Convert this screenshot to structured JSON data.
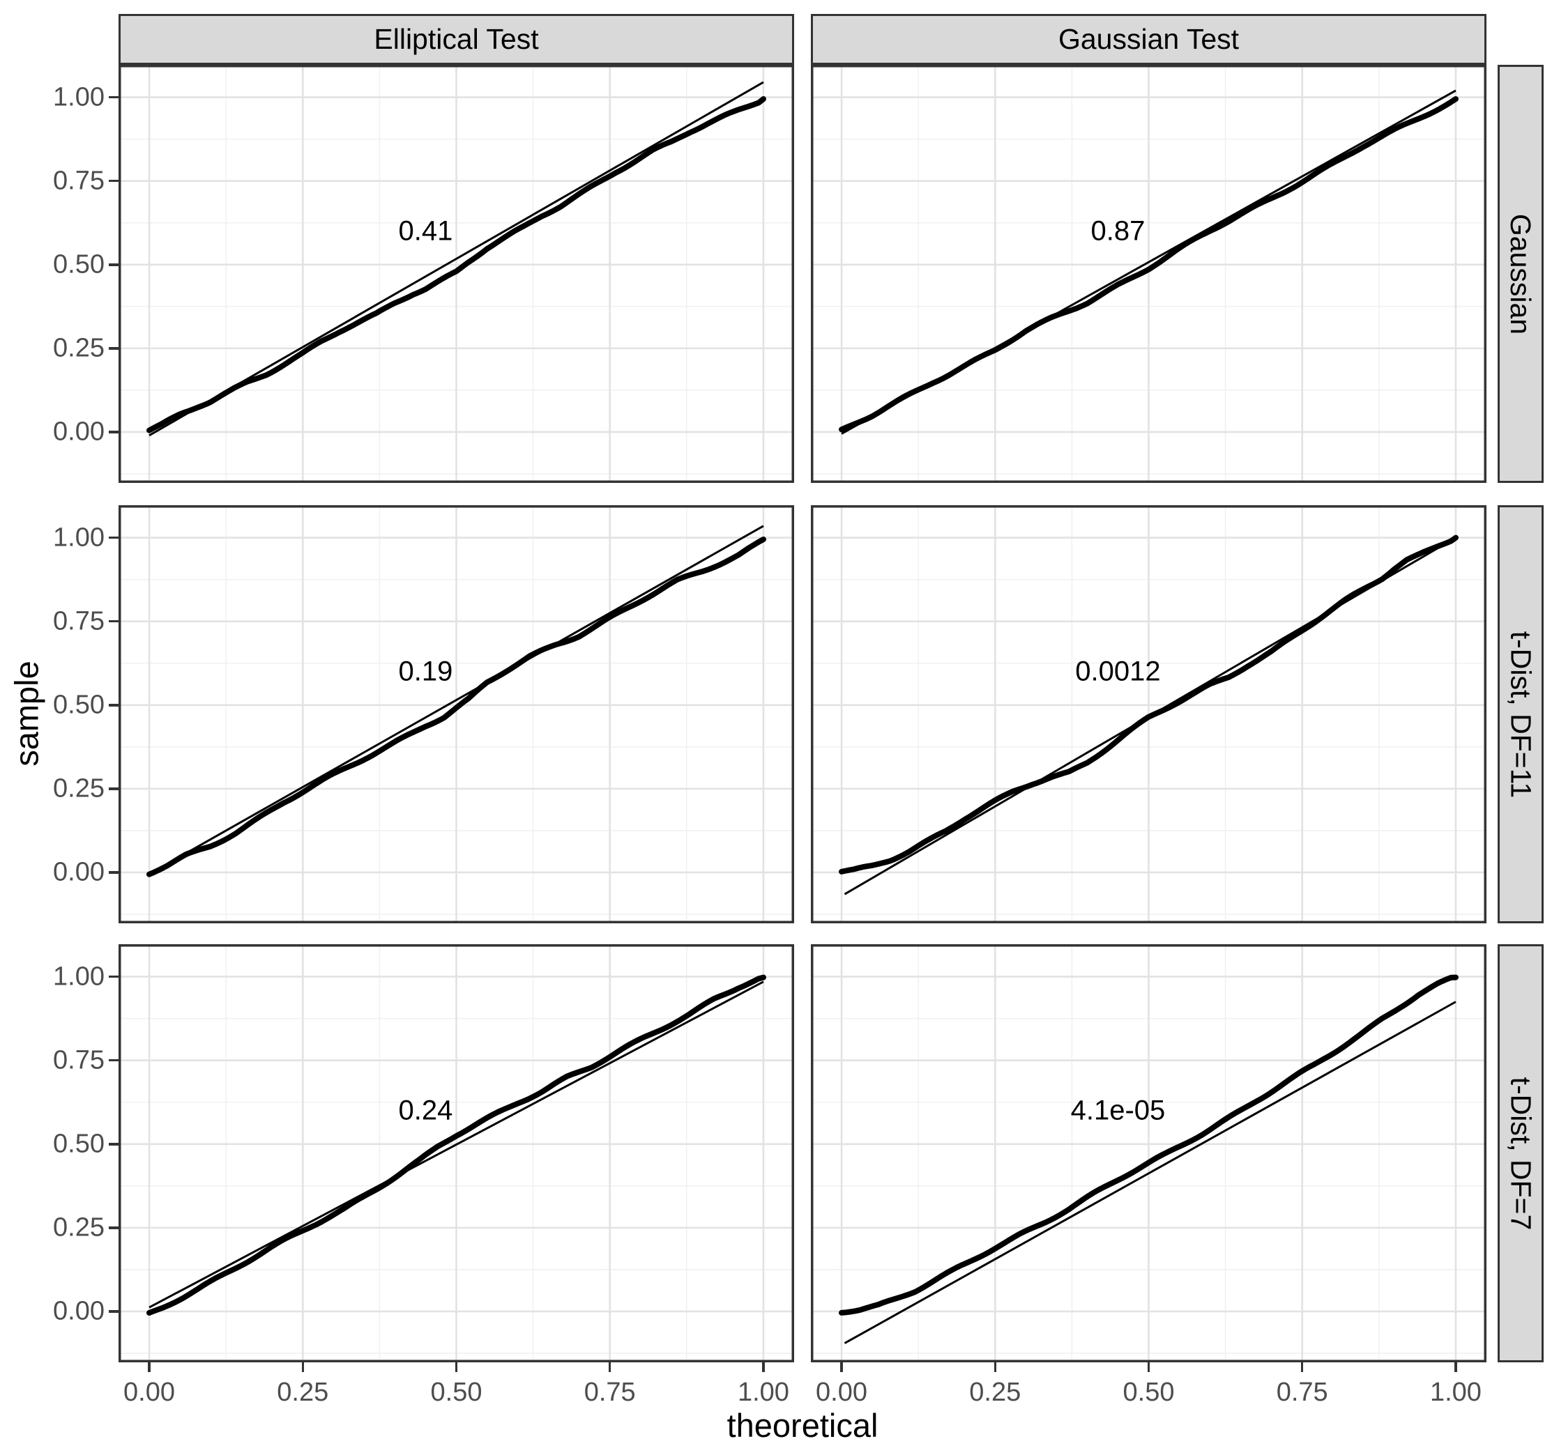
{
  "figure": {
    "background": "#ffffff"
  },
  "axes": {
    "x_title": "theoretical",
    "y_title": "sample",
    "x_tick_labels": [
      "0.00",
      "0.25",
      "0.50",
      "0.75",
      "1.00"
    ],
    "y_tick_labels": [
      "0.00",
      "0.25",
      "0.50",
      "0.75",
      "1.00"
    ],
    "x_tick_values": [
      0,
      0.25,
      0.5,
      0.75,
      1
    ],
    "y_tick_values": [
      0,
      0.25,
      0.5,
      0.75,
      1
    ],
    "xlim": [
      -0.05,
      1.05
    ],
    "ylim": [
      -0.152,
      1.097
    ],
    "grid": "on"
  },
  "facets": {
    "col_labels": [
      "Elliptical Test",
      "Gaussian Test"
    ],
    "row_labels": [
      "Gaussian",
      "t-Dist, DF=11",
      "t-Dist, DF=7"
    ]
  },
  "colors": {
    "strip_fill": "#d9d9d9",
    "strip_border": "#333333",
    "panel_border": "#333333",
    "grid_major": "#e2e2e2",
    "grid_minor": "#f1f1f1",
    "tick_text": "#4d4d4d",
    "data_line": "#000000",
    "reference_line": "#000000"
  },
  "chart_data": [
    {
      "type": "scatter",
      "facet_col": "Elliptical Test",
      "facet_row": "Gaussian",
      "p_value_label": "0.41",
      "annotation_xy": [
        0.45,
        0.6
      ],
      "ref_line": {
        "start": [
          0,
          -0.01
        ],
        "end": [
          1,
          1.045
        ]
      },
      "qq_points": [
        [
          0,
          0.005
        ],
        [
          0.02,
          0.02
        ],
        [
          0.05,
          0.05
        ],
        [
          0.08,
          0.075
        ],
        [
          0.1,
          0.09
        ],
        [
          0.13,
          0.12
        ],
        [
          0.16,
          0.15
        ],
        [
          0.19,
          0.175
        ],
        [
          0.22,
          0.205
        ],
        [
          0.25,
          0.235
        ],
        [
          0.28,
          0.27
        ],
        [
          0.31,
          0.3
        ],
        [
          0.34,
          0.325
        ],
        [
          0.37,
          0.35
        ],
        [
          0.4,
          0.385
        ],
        [
          0.43,
          0.415
        ],
        [
          0.45,
          0.43
        ],
        [
          0.47,
          0.45
        ],
        [
          0.5,
          0.48
        ],
        [
          0.52,
          0.51
        ],
        [
          0.55,
          0.55
        ],
        [
          0.58,
          0.58
        ],
        [
          0.61,
          0.61
        ],
        [
          0.64,
          0.645
        ],
        [
          0.67,
          0.675
        ],
        [
          0.7,
          0.71
        ],
        [
          0.73,
          0.745
        ],
        [
          0.76,
          0.78
        ],
        [
          0.79,
          0.81
        ],
        [
          0.82,
          0.84
        ],
        [
          0.85,
          0.865
        ],
        [
          0.88,
          0.895
        ],
        [
          0.91,
          0.92
        ],
        [
          0.94,
          0.945
        ],
        [
          0.97,
          0.97
        ],
        [
          1,
          0.995
        ]
      ]
    },
    {
      "type": "scatter",
      "facet_col": "Gaussian Test",
      "facet_row": "Gaussian",
      "p_value_label": "0.87",
      "annotation_xy": [
        0.45,
        0.6
      ],
      "ref_line": {
        "start": [
          0,
          -0.005
        ],
        "end": [
          1,
          1.02
        ]
      },
      "qq_points": [
        [
          0,
          0.003
        ],
        [
          0.05,
          0.048
        ],
        [
          0.1,
          0.1
        ],
        [
          0.15,
          0.152
        ],
        [
          0.2,
          0.198
        ],
        [
          0.25,
          0.245
        ],
        [
          0.3,
          0.3
        ],
        [
          0.35,
          0.345
        ],
        [
          0.4,
          0.388
        ],
        [
          0.45,
          0.44
        ],
        [
          0.5,
          0.49
        ],
        [
          0.55,
          0.545
        ],
        [
          0.6,
          0.6
        ],
        [
          0.65,
          0.65
        ],
        [
          0.7,
          0.7
        ],
        [
          0.75,
          0.75
        ],
        [
          0.8,
          0.8
        ],
        [
          0.85,
          0.853
        ],
        [
          0.9,
          0.9
        ],
        [
          0.95,
          0.948
        ],
        [
          1,
          0.995
        ]
      ]
    },
    {
      "type": "scatter",
      "facet_col": "Elliptical Test",
      "facet_row": "t-Dist, DF=11",
      "p_value_label": "0.19",
      "annotation_xy": [
        0.45,
        0.6
      ],
      "ref_line": {
        "start": [
          0,
          -0.005
        ],
        "end": [
          1,
          1.035
        ]
      },
      "qq_points": [
        [
          0,
          -0.005
        ],
        [
          0.03,
          0.02
        ],
        [
          0.06,
          0.05
        ],
        [
          0.1,
          0.08
        ],
        [
          0.14,
          0.12
        ],
        [
          0.18,
          0.165
        ],
        [
          0.22,
          0.21
        ],
        [
          0.26,
          0.25
        ],
        [
          0.3,
          0.29
        ],
        [
          0.34,
          0.33
        ],
        [
          0.38,
          0.37
        ],
        [
          0.42,
          0.41
        ],
        [
          0.45,
          0.44
        ],
        [
          0.48,
          0.465
        ],
        [
          0.5,
          0.49
        ],
        [
          0.52,
          0.515
        ],
        [
          0.55,
          0.565
        ],
        [
          0.58,
          0.6
        ],
        [
          0.62,
          0.645
        ],
        [
          0.66,
          0.68
        ],
        [
          0.7,
          0.71
        ],
        [
          0.74,
          0.75
        ],
        [
          0.78,
          0.79
        ],
        [
          0.82,
          0.83
        ],
        [
          0.86,
          0.87
        ],
        [
          0.9,
          0.9
        ],
        [
          0.93,
          0.925
        ],
        [
          0.96,
          0.95
        ],
        [
          1,
          0.995
        ]
      ]
    },
    {
      "type": "scatter",
      "facet_col": "Gaussian Test",
      "facet_row": "t-Dist, DF=11",
      "p_value_label": "0.0012",
      "annotation_xy": [
        0.45,
        0.6
      ],
      "ref_line": {
        "start": [
          0.005,
          -0.065
        ],
        "end": [
          1,
          1.0
        ]
      },
      "qq_points": [
        [
          0,
          0
        ],
        [
          0.02,
          0.005
        ],
        [
          0.05,
          0.02
        ],
        [
          0.08,
          0.04
        ],
        [
          0.11,
          0.065
        ],
        [
          0.14,
          0.095
        ],
        [
          0.17,
          0.125
        ],
        [
          0.2,
          0.16
        ],
        [
          0.24,
          0.2
        ],
        [
          0.28,
          0.24
        ],
        [
          0.31,
          0.265
        ],
        [
          0.34,
          0.285
        ],
        [
          0.37,
          0.3
        ],
        [
          0.4,
          0.33
        ],
        [
          0.43,
          0.37
        ],
        [
          0.46,
          0.41
        ],
        [
          0.5,
          0.46
        ],
        [
          0.54,
          0.5
        ],
        [
          0.57,
          0.53
        ],
        [
          0.6,
          0.56
        ],
        [
          0.63,
          0.585
        ],
        [
          0.66,
          0.62
        ],
        [
          0.7,
          0.66
        ],
        [
          0.74,
          0.71
        ],
        [
          0.78,
          0.76
        ],
        [
          0.82,
          0.81
        ],
        [
          0.85,
          0.845
        ],
        [
          0.88,
          0.88
        ],
        [
          0.9,
          0.91
        ],
        [
          0.92,
          0.935
        ],
        [
          0.94,
          0.95
        ],
        [
          0.97,
          0.975
        ],
        [
          1,
          1
        ]
      ]
    },
    {
      "type": "scatter",
      "facet_col": "Elliptical Test",
      "facet_row": "t-Dist, DF=7",
      "p_value_label": "0.24",
      "annotation_xy": [
        0.45,
        0.6
      ],
      "ref_line": {
        "start": [
          0,
          0.012
        ],
        "end": [
          1,
          0.985
        ]
      },
      "qq_points": [
        [
          0,
          -0.008
        ],
        [
          0.02,
          0.01
        ],
        [
          0.05,
          0.04
        ],
        [
          0.08,
          0.07
        ],
        [
          0.11,
          0.1
        ],
        [
          0.14,
          0.13
        ],
        [
          0.17,
          0.16
        ],
        [
          0.2,
          0.19
        ],
        [
          0.24,
          0.23
        ],
        [
          0.28,
          0.27
        ],
        [
          0.32,
          0.31
        ],
        [
          0.35,
          0.345
        ],
        [
          0.38,
          0.38
        ],
        [
          0.41,
          0.415
        ],
        [
          0.44,
          0.45
        ],
        [
          0.47,
          0.49
        ],
        [
          0.5,
          0.525
        ],
        [
          0.53,
          0.555
        ],
        [
          0.56,
          0.585
        ],
        [
          0.6,
          0.625
        ],
        [
          0.64,
          0.66
        ],
        [
          0.68,
          0.7
        ],
        [
          0.72,
          0.73
        ],
        [
          0.76,
          0.77
        ],
        [
          0.8,
          0.81
        ],
        [
          0.84,
          0.85
        ],
        [
          0.88,
          0.89
        ],
        [
          0.92,
          0.935
        ],
        [
          0.96,
          0.97
        ],
        [
          1,
          0.998
        ]
      ]
    },
    {
      "type": "scatter",
      "facet_col": "Gaussian Test",
      "facet_row": "t-Dist, DF=7",
      "p_value_label": "4.1e-05",
      "annotation_xy": [
        0.45,
        0.6
      ],
      "ref_line": {
        "start": [
          0.005,
          -0.095
        ],
        "end": [
          1,
          0.925
        ]
      },
      "qq_points": [
        [
          0,
          0
        ],
        [
          0.03,
          0.008
        ],
        [
          0.06,
          0.02
        ],
        [
          0.09,
          0.04
        ],
        [
          0.12,
          0.062
        ],
        [
          0.15,
          0.09
        ],
        [
          0.18,
          0.118
        ],
        [
          0.21,
          0.148
        ],
        [
          0.25,
          0.19
        ],
        [
          0.29,
          0.23
        ],
        [
          0.33,
          0.268
        ],
        [
          0.37,
          0.308
        ],
        [
          0.41,
          0.35
        ],
        [
          0.45,
          0.392
        ],
        [
          0.49,
          0.432
        ],
        [
          0.53,
          0.472
        ],
        [
          0.57,
          0.515
        ],
        [
          0.61,
          0.558
        ],
        [
          0.65,
          0.6
        ],
        [
          0.69,
          0.645
        ],
        [
          0.73,
          0.69
        ],
        [
          0.77,
          0.735
        ],
        [
          0.81,
          0.785
        ],
        [
          0.85,
          0.835
        ],
        [
          0.88,
          0.875
        ],
        [
          0.91,
          0.912
        ],
        [
          0.94,
          0.948
        ],
        [
          0.97,
          0.975
        ],
        [
          1,
          0.998
        ]
      ]
    }
  ]
}
